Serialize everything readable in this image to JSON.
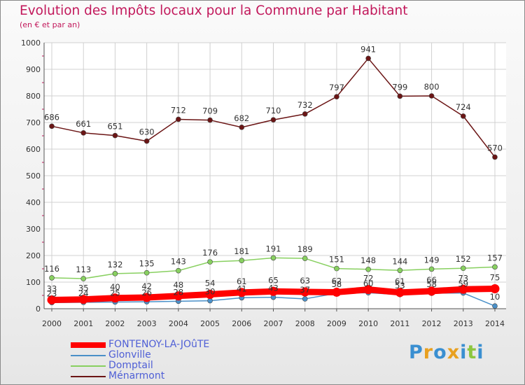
{
  "header": {
    "title": "Evolution des Impôts locaux pour la Commune par Habitant",
    "subtitle": "(en € et par an)"
  },
  "colors": {
    "title": "#c2185b",
    "legend_text": "#4f5fd6",
    "grid": "#d0d0d0",
    "axis_ticks": "#c2185b"
  },
  "logo": {
    "letters": [
      "P",
      "r",
      "o",
      "x",
      "i",
      "t",
      "i"
    ],
    "colors": [
      "#3a8fd1",
      "#e8a020",
      "#3a8fd1",
      "#e8a020",
      "#3a8fd1",
      "#8cc63f",
      "#3a8fd1"
    ]
  },
  "chart_data": {
    "type": "line",
    "title": "Evolution des Impôts locaux pour la Commune par Habitant",
    "ylabel": "(en € et par an)",
    "ylim": [
      0,
      1000
    ],
    "yticks": [
      0,
      100,
      200,
      300,
      400,
      500,
      600,
      700,
      800,
      900,
      1000
    ],
    "grid": true,
    "legend_position": "bottom-left",
    "x": [
      "2000",
      "2001",
      "2002",
      "2003",
      "2004",
      "2005",
      "2006",
      "2007",
      "2008",
      "2009",
      "2010",
      "2011",
      "2012",
      "2013",
      "2014"
    ],
    "series": [
      {
        "name": "FONTENOY-LA-JOûTE",
        "color": "#ff0000",
        "values": [
          33,
          35,
          40,
          42,
          48,
          54,
          61,
          65,
          63,
          62,
          72,
          61,
          66,
          73,
          75
        ]
      },
      {
        "name": "Glonville",
        "color": "#4a90c8",
        "values": [
          23,
          24,
          25,
          26,
          28,
          30,
          41,
          43,
          37,
          58,
          60,
          53,
          58,
          59,
          10
        ]
      },
      {
        "name": "Domptail",
        "color": "#88d060",
        "values": [
          116,
          113,
          132,
          135,
          143,
          176,
          181,
          191,
          189,
          151,
          148,
          144,
          149,
          152,
          157
        ]
      },
      {
        "name": "Ménarmont",
        "color": "#6b1515",
        "values": [
          686,
          661,
          651,
          630,
          712,
          709,
          682,
          710,
          732,
          797,
          941,
          799,
          800,
          724,
          570
        ]
      }
    ]
  }
}
